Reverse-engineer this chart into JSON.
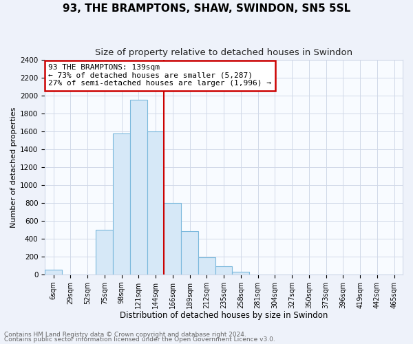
{
  "title": "93, THE BRAMPTONS, SHAW, SWINDON, SN5 5SL",
  "subtitle": "Size of property relative to detached houses in Swindon",
  "xlabel": "Distribution of detached houses by size in Swindon",
  "ylabel": "Number of detached properties",
  "bar_labels": [
    "6sqm",
    "29sqm",
    "52sqm",
    "75sqm",
    "98sqm",
    "121sqm",
    "144sqm",
    "166sqm",
    "189sqm",
    "212sqm",
    "235sqm",
    "258sqm",
    "281sqm",
    "304sqm",
    "327sqm",
    "350sqm",
    "373sqm",
    "396sqm",
    "419sqm",
    "442sqm",
    "465sqm"
  ],
  "bar_values": [
    55,
    0,
    0,
    500,
    1575,
    1950,
    1600,
    800,
    480,
    190,
    90,
    30,
    0,
    0,
    0,
    0,
    0,
    0,
    0,
    0,
    0
  ],
  "bar_color": "#d6e8f7",
  "bar_edge_color": "#7ab8dc",
  "vline_color": "#cc0000",
  "annotation_line1": "93 THE BRAMPTONS: 139sqm",
  "annotation_line2": "← 73% of detached houses are smaller (5,287)",
  "annotation_line3": "27% of semi-detached houses are larger (1,996) →",
  "annotation_box_color": "#ffffff",
  "annotation_box_edge": "#cc0000",
  "ylim": [
    0,
    2400
  ],
  "yticks": [
    0,
    200,
    400,
    600,
    800,
    1000,
    1200,
    1400,
    1600,
    1800,
    2000,
    2200,
    2400
  ],
  "footnote1": "Contains HM Land Registry data © Crown copyright and database right 2024.",
  "footnote2": "Contains public sector information licensed under the Open Government Licence v3.0.",
  "bg_color": "#eef2fa",
  "plot_bg_color": "#f8fbff",
  "grid_color": "#d0d8e8"
}
